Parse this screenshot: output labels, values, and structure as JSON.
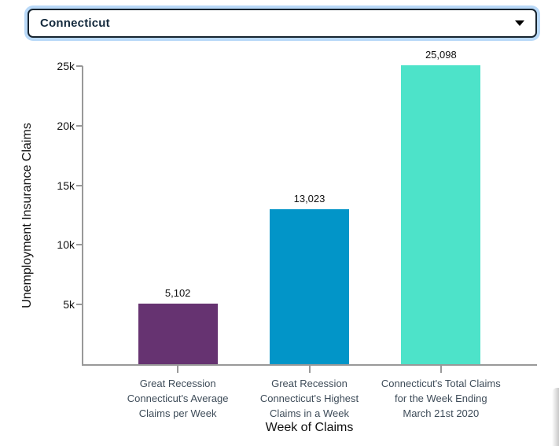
{
  "dropdown": {
    "value": "Connecticut",
    "caret_icon": "chevron-down"
  },
  "chart_data": {
    "type": "bar",
    "title": "",
    "xlabel": "Week of Claims",
    "ylabel": "Unemployment Insurance Claims",
    "ylim": [
      0,
      25000
    ],
    "ytick_values": [
      5000,
      10000,
      15000,
      20000,
      25000
    ],
    "ytick_labels": [
      "5k",
      "10k",
      "15k",
      "20k",
      "25k"
    ],
    "grid": false,
    "legend": false,
    "categories": [
      "Great Recession Connecticut's Average Claims per Week",
      "Great Recession Connecticut's Highest Claims in a Week",
      "Connecticut's Total Claims for the Week Ending March 21st 2020"
    ],
    "category_lines": [
      [
        "Great Recession",
        "Connecticut's Average",
        "Claims per Week"
      ],
      [
        "Great Recession",
        "Connecticut's Highest",
        "Claims in a Week"
      ],
      [
        "Connecticut's Total Claims",
        "for the Week Ending",
        "March 21st 2020"
      ]
    ],
    "values": [
      5102,
      13023,
      25098
    ],
    "value_labels": [
      "5,102",
      "13,023",
      "25,098"
    ],
    "bar_colors": [
      "#663371",
      "#0295c8",
      "#4de3c9"
    ],
    "axis_color": "#999999"
  }
}
